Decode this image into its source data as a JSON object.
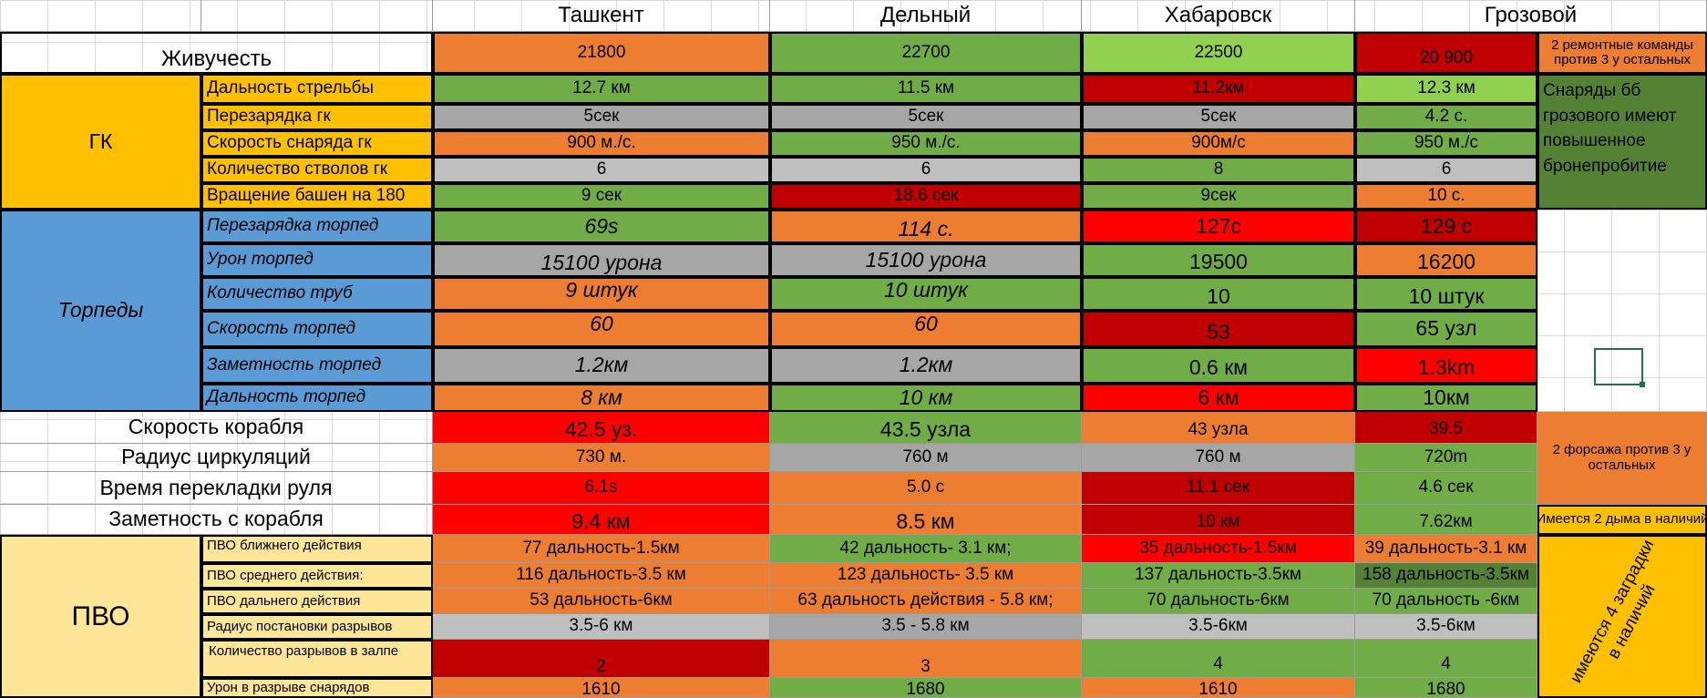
{
  "columns": [
    "Ташкент",
    "Дельный",
    "Хабаровск",
    "Грозовой"
  ],
  "colors": {
    "orange": "#ED7D31",
    "green": "#70AD47",
    "light_green": "#92D050",
    "dark_red": "#C00000",
    "red": "#FF0000",
    "gray": "#A6A6A6",
    "light_gray": "#BFBFBF",
    "amber": "#FFC000",
    "blue": "#5B9BD5",
    "pale_yellow": "#FFE699",
    "dark_green": "#548235"
  },
  "survivability": {
    "label": "Живучесть",
    "values": [
      "21800",
      "22700",
      "22500",
      "20 900"
    ],
    "note": "2 ремонтные команды против 3 у остальных"
  },
  "gk": {
    "label": "ГК",
    "rows": [
      {
        "label": "Дальность стрельбы",
        "values": [
          "12.7 км",
          "11.5 км",
          "11.2км",
          "12.3 км"
        ]
      },
      {
        "label": "Перезарядка гк",
        "values": [
          "5сек",
          "5сек",
          "5сек",
          "4.2 с."
        ]
      },
      {
        "label": "Скорость снаряда гк",
        "values": [
          "900 м./с.",
          "950 м./с.",
          "900м/с",
          "950 м./с"
        ]
      },
      {
        "label": "Количество стволов гк",
        "values": [
          "6",
          "6",
          "8",
          "6"
        ]
      },
      {
        "label": "Вращение башен на 180",
        "values": [
          "9 сек",
          "18.6 сек",
          "9сек",
          "10 с."
        ]
      }
    ],
    "note": "Снаряды бб грозового имеют повышенное бронепробитие"
  },
  "torpedoes": {
    "label": "Торпеды",
    "rows": [
      {
        "label": "Перезарядка торпед",
        "values": [
          "69s",
          "114 с.",
          "127с",
          "129 с"
        ]
      },
      {
        "label": "Урон торпед",
        "values": [
          "15100 урона",
          "15100 урона",
          "19500",
          "16200"
        ]
      },
      {
        "label": "Количество труб",
        "values": [
          "9 штук",
          "10 штук",
          "10",
          "10 штук"
        ]
      },
      {
        "label": "Скорость торпед",
        "values": [
          "60",
          "60",
          "53",
          "65 узл"
        ]
      },
      {
        "label": "Заметность торпед",
        "values": [
          "1.2км",
          "1.2км",
          "0.6 км",
          "1.3km"
        ]
      },
      {
        "label": "Дальность торпед",
        "values": [
          "8 км",
          "10 км",
          "6 км",
          "10км"
        ]
      }
    ]
  },
  "mobility": {
    "rows": [
      {
        "label": "Скорость корабля",
        "values": [
          "42.5 уз.",
          "43.5 узла",
          "43 узла",
          "39.5"
        ]
      },
      {
        "label": "Радиус циркуляций",
        "values": [
          "730 м.",
          "760 м",
          "760 м",
          "720m"
        ]
      },
      {
        "label": "Время перекладки руля",
        "values": [
          "6.1s",
          "5.0 с",
          "11.1 сек",
          "4.6 сек"
        ]
      },
      {
        "label": "Заметность с корабля",
        "values": [
          "9.4 км",
          "8.5 км",
          "10 км",
          "7.62км"
        ]
      }
    ],
    "note_boost": "2 форсажа против 3 у остальных",
    "note_smoke": "Имеется 2 дыма в наличий"
  },
  "aa": {
    "label": "ПВО",
    "rows": [
      {
        "label": "ПВО ближнего действия",
        "values": [
          "77 дальность-1.5км",
          "42 дальность- 3.1 км;",
          "35 дальность-1.5км",
          "39 дальность-3.1 км"
        ]
      },
      {
        "label": "ПВО среднего действия:",
        "values": [
          "116 дальность-3.5 км",
          "123 дальность- 3.5 км",
          "137 дальность-3.5км",
          "158 дальность-3.5км"
        ]
      },
      {
        "label": "ПВО дальнего действия",
        "values": [
          "53 дальность-6км",
          "63 дальность действия - 5.8 км;",
          "70 дальность-6км",
          "70 дальность -6км"
        ]
      },
      {
        "label": "Радиус постановки разрывов",
        "values": [
          "3.5-6 км",
          "3.5 - 5.8 км",
          "3.5-6км",
          "3.5-6км"
        ]
      },
      {
        "label": "Количество разрывов в залпе",
        "values": [
          "2",
          "3",
          "4",
          "4"
        ]
      },
      {
        "label": "Урон в разрыве снарядов",
        "values": [
          "1610",
          "1680",
          "1610",
          "1680"
        ]
      }
    ],
    "note": "имеются 4 заградки в наличий"
  }
}
